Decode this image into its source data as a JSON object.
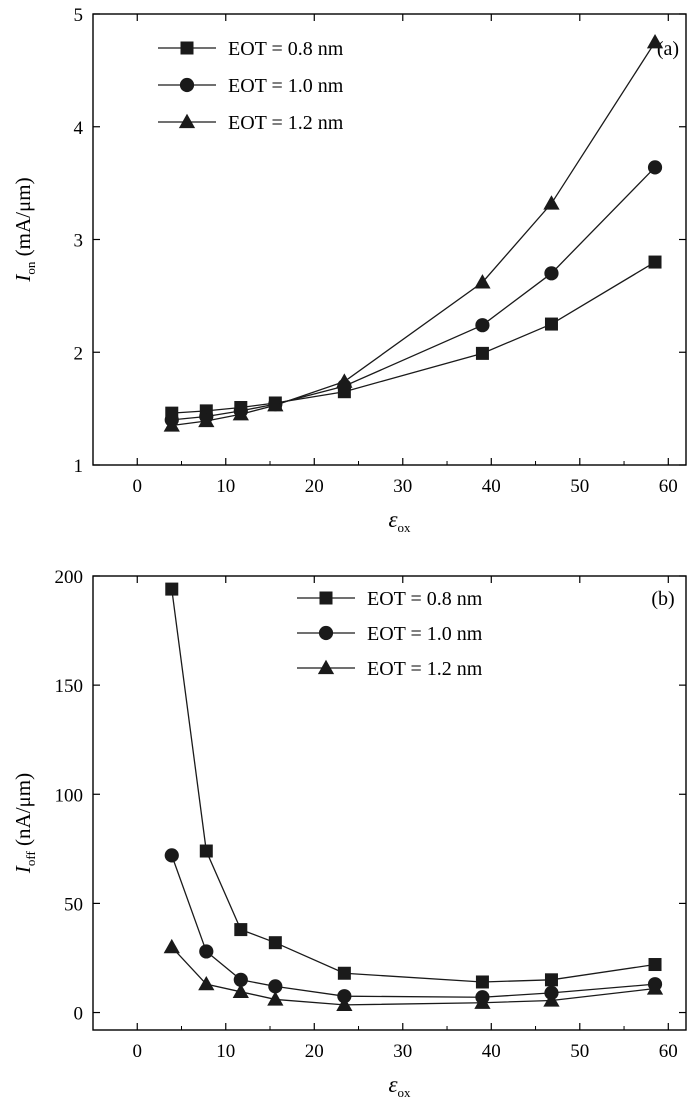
{
  "chart_data": [
    {
      "type": "line",
      "panel_label": "(a)",
      "ylabel_main": "I",
      "ylabel_sub": "on",
      "ylabel_unit": " (mA/μm)",
      "xlabel_main": "ε",
      "xlabel_sub": "ox",
      "xlim": [
        -5,
        62
      ],
      "ylim": [
        1,
        5
      ],
      "xticks": [
        0,
        10,
        20,
        30,
        40,
        50,
        60
      ],
      "yticks": [
        1,
        2,
        3,
        4,
        5
      ],
      "grid": false,
      "legend_position": "top-left",
      "x": [
        3.9,
        7.8,
        11.7,
        15.6,
        23.4,
        39,
        46.8,
        58.5
      ],
      "series": [
        {
          "name": "EOT = 0.8 nm",
          "marker": "square",
          "values": [
            1.46,
            1.48,
            1.51,
            1.55,
            1.65,
            1.99,
            2.25,
            2.8
          ]
        },
        {
          "name": "EOT = 1.0 nm",
          "marker": "circle",
          "values": [
            1.4,
            1.43,
            1.48,
            1.54,
            1.7,
            2.24,
            2.7,
            3.64
          ]
        },
        {
          "name": "EOT = 1.2 nm",
          "marker": "triangle",
          "values": [
            1.35,
            1.39,
            1.45,
            1.53,
            1.74,
            2.62,
            3.32,
            4.75
          ]
        }
      ]
    },
    {
      "type": "line",
      "panel_label": "(b)",
      "ylabel_main": "I",
      "ylabel_sub": "off",
      "ylabel_unit": " (nA/μm)",
      "xlabel_main": "ε",
      "xlabel_sub": "ox",
      "xlim": [
        -5,
        62
      ],
      "ylim": [
        -8,
        200
      ],
      "xticks": [
        0,
        10,
        20,
        30,
        40,
        50,
        60
      ],
      "yticks": [
        0,
        50,
        100,
        150,
        200
      ],
      "grid": false,
      "legend_position": "top-center",
      "x": [
        3.9,
        7.8,
        11.7,
        15.6,
        23.4,
        39,
        46.8,
        58.5
      ],
      "series": [
        {
          "name": "EOT = 0.8 nm",
          "marker": "square",
          "values": [
            194,
            74,
            38,
            32,
            18,
            14,
            15,
            22
          ]
        },
        {
          "name": "EOT = 1.0 nm",
          "marker": "circle",
          "values": [
            72,
            28,
            15,
            12,
            7.5,
            7,
            9,
            13
          ]
        },
        {
          "name": "EOT = 1.2 nm",
          "marker": "triangle",
          "values": [
            30,
            13,
            9.5,
            6,
            3.5,
            4.5,
            5.5,
            11
          ]
        }
      ]
    }
  ]
}
